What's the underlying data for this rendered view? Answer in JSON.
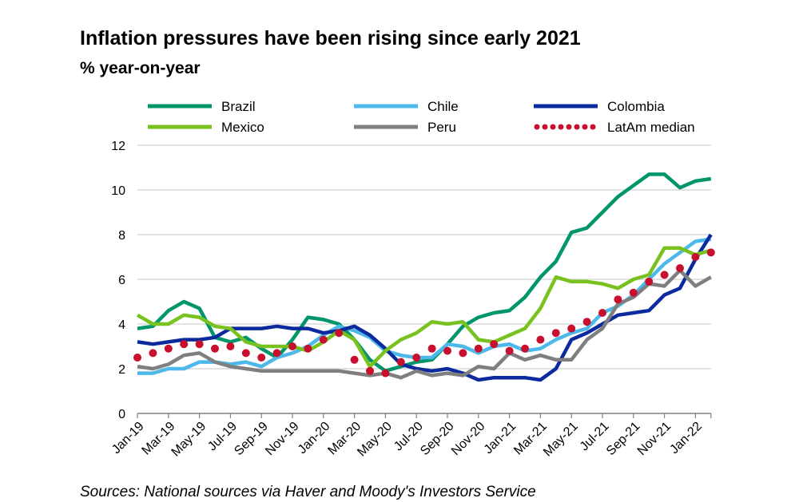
{
  "title": "Inflation pressures have been rising since early 2021",
  "subtitle": "% year-on-year",
  "source": "Sources: National sources via Haver and Moody's Investors Service",
  "chart_data": {
    "type": "line",
    "title": "Inflation pressures have been rising since early 2021",
    "ylabel": "% year-on-year",
    "ylim": [
      0,
      12
    ],
    "yticks": [
      0,
      2,
      4,
      6,
      8,
      10,
      12
    ],
    "grid": "horizontal",
    "legend": "top",
    "x": [
      "Jan-19",
      "Feb-19",
      "Mar-19",
      "Apr-19",
      "May-19",
      "Jun-19",
      "Jul-19",
      "Aug-19",
      "Sep-19",
      "Oct-19",
      "Nov-19",
      "Dec-19",
      "Jan-20",
      "Feb-20",
      "Mar-20",
      "Apr-20",
      "May-20",
      "Jun-20",
      "Jul-20",
      "Aug-20",
      "Sep-20",
      "Oct-20",
      "Nov-20",
      "Dec-20",
      "Jan-21",
      "Feb-21",
      "Mar-21",
      "Apr-21",
      "May-21",
      "Jun-21",
      "Jul-21",
      "Aug-21",
      "Sep-21",
      "Oct-21",
      "Nov-21",
      "Dec-21",
      "Jan-22",
      "Feb-22"
    ],
    "xtick_labels": [
      "Jan-19",
      "Mar-19",
      "May-19",
      "Jul-19",
      "Sep-19",
      "Nov-19",
      "Jan-20",
      "Mar-20",
      "May-20",
      "Jul-20",
      "Sep-20",
      "Nov-20",
      "Jan-21",
      "Mar-21",
      "May-21",
      "Jul-21",
      "Sep-21",
      "Nov-21",
      "Jan-22"
    ],
    "series": [
      {
        "name": "Brazil",
        "color": "#00956b",
        "style": "solid",
        "values": [
          3.8,
          3.9,
          4.6,
          5.0,
          4.7,
          3.4,
          3.2,
          3.4,
          2.9,
          2.5,
          3.3,
          4.3,
          4.2,
          4.0,
          3.3,
          2.4,
          1.9,
          2.1,
          2.3,
          2.4,
          3.1,
          3.9,
          4.3,
          4.5,
          4.6,
          5.2,
          6.1,
          6.8,
          8.1,
          8.3,
          9.0,
          9.7,
          10.2,
          10.7,
          10.7,
          10.1,
          10.4,
          10.5
        ]
      },
      {
        "name": "Chile",
        "color": "#4db8ea",
        "style": "solid",
        "values": [
          1.8,
          1.8,
          2.0,
          2.0,
          2.3,
          2.3,
          2.2,
          2.3,
          2.1,
          2.5,
          2.7,
          3.0,
          3.5,
          3.9,
          3.7,
          3.4,
          2.8,
          2.6,
          2.5,
          2.5,
          3.1,
          3.0,
          2.7,
          3.0,
          3.1,
          2.8,
          2.9,
          3.3,
          3.6,
          3.8,
          4.5,
          4.8,
          5.3,
          6.0,
          6.7,
          7.2,
          7.7,
          7.8
        ]
      },
      {
        "name": "Colombia",
        "color": "#0a2a9e",
        "style": "solid",
        "values": [
          3.2,
          3.1,
          3.2,
          3.3,
          3.3,
          3.4,
          3.8,
          3.8,
          3.8,
          3.9,
          3.8,
          3.8,
          3.6,
          3.7,
          3.9,
          3.5,
          2.9,
          2.2,
          2.0,
          1.9,
          2.0,
          1.8,
          1.5,
          1.6,
          1.6,
          1.6,
          1.5,
          2.0,
          3.3,
          3.6,
          4.0,
          4.4,
          4.5,
          4.6,
          5.3,
          5.6,
          6.9,
          8.0
        ]
      },
      {
        "name": "Mexico",
        "color": "#78c220",
        "style": "solid",
        "values": [
          4.4,
          4.0,
          4.0,
          4.4,
          4.3,
          3.9,
          3.8,
          3.2,
          3.0,
          3.0,
          3.0,
          2.8,
          3.2,
          3.7,
          3.3,
          2.1,
          2.8,
          3.3,
          3.6,
          4.1,
          4.0,
          4.1,
          3.3,
          3.2,
          3.5,
          3.8,
          4.7,
          6.1,
          5.9,
          5.9,
          5.8,
          5.6,
          6.0,
          6.2,
          7.4,
          7.4,
          7.1,
          7.3
        ]
      },
      {
        "name": "Peru",
        "color": "#7f7f7f",
        "style": "solid",
        "values": [
          2.1,
          2.0,
          2.2,
          2.6,
          2.7,
          2.3,
          2.1,
          2.0,
          1.9,
          1.9,
          1.9,
          1.9,
          1.9,
          1.9,
          1.8,
          1.7,
          1.8,
          1.6,
          1.9,
          1.7,
          1.8,
          1.7,
          2.1,
          2.0,
          2.7,
          2.4,
          2.6,
          2.4,
          2.4,
          3.3,
          3.8,
          4.9,
          5.2,
          5.8,
          5.7,
          6.4,
          5.7,
          6.1
        ]
      },
      {
        "name": "LatAm median",
        "color": "#c8102e",
        "style": "dotted",
        "values": [
          2.5,
          2.7,
          2.9,
          3.1,
          3.1,
          2.9,
          3.0,
          2.7,
          2.5,
          2.7,
          3.0,
          2.9,
          3.3,
          3.6,
          2.4,
          1.9,
          1.8,
          2.3,
          2.5,
          2.9,
          2.8,
          2.7,
          2.9,
          3.1,
          2.8,
          2.9,
          3.3,
          3.6,
          3.8,
          4.1,
          4.5,
          5.1,
          5.4,
          5.9,
          6.2,
          6.5,
          7.0,
          7.2
        ]
      }
    ]
  }
}
